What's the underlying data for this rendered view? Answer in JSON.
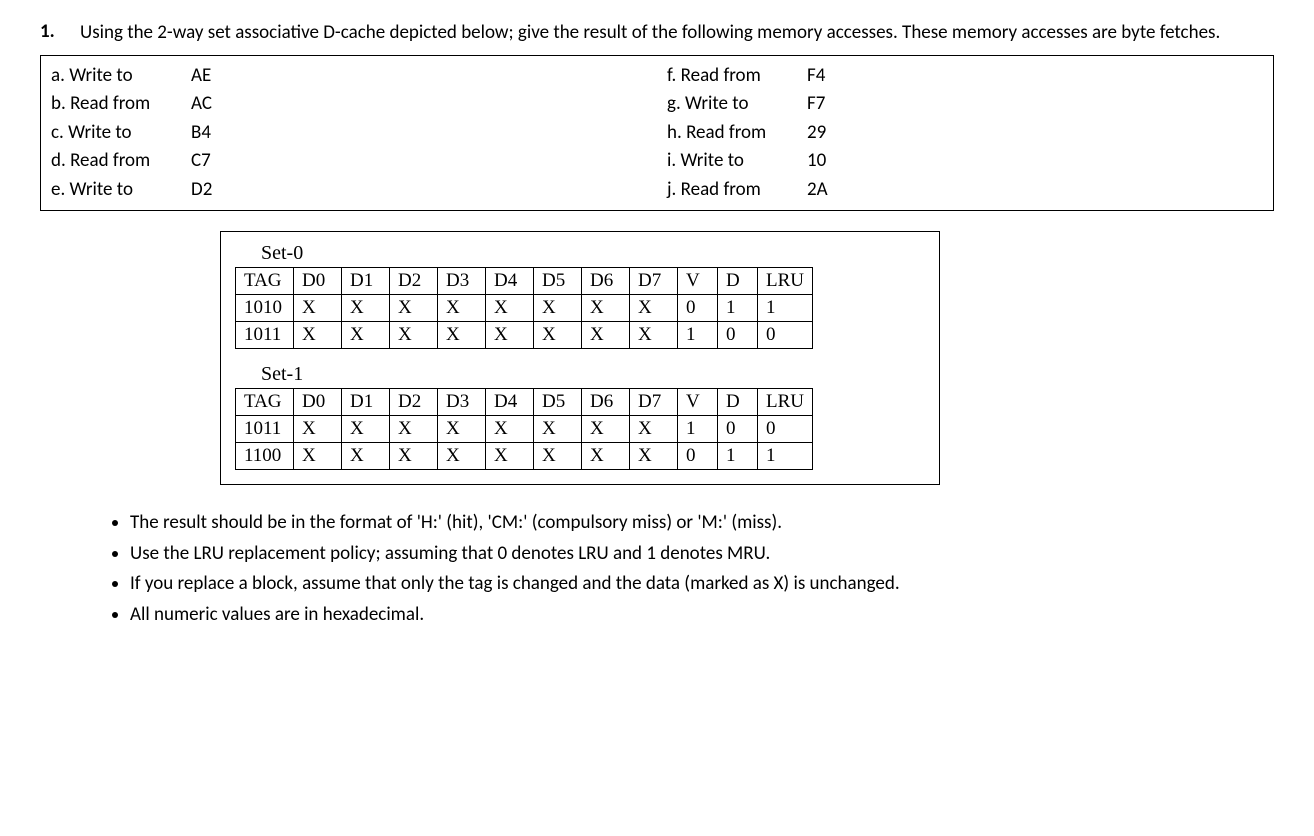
{
  "question": {
    "number": "1.",
    "text": "Using the 2-way set associative D-cache depicted below; give the result of the following memory accesses. These memory accesses are byte fetches."
  },
  "accesses_left": [
    {
      "label": "a. Write to",
      "addr": "AE"
    },
    {
      "label": "b. Read from",
      "addr": "AC"
    },
    {
      "label": "c. Write to",
      "addr": "B4"
    },
    {
      "label": "d. Read from",
      "addr": "C7"
    },
    {
      "label": "e. Write to",
      "addr": "D2"
    }
  ],
  "accesses_right": [
    {
      "label": "f. Read from",
      "addr": "F4"
    },
    {
      "label": "g. Write to",
      "addr": "F7"
    },
    {
      "label": "h. Read from",
      "addr": "29"
    },
    {
      "label": "i. Write to",
      "addr": "10"
    },
    {
      "label": "j. Read from",
      "addr": "2A"
    }
  ],
  "cache_headers": [
    "TAG",
    "D0",
    "D1",
    "D2",
    "D3",
    "D4",
    "D5",
    "D6",
    "D7",
    "V",
    "D",
    "LRU"
  ],
  "set0": {
    "label": "Set-0",
    "rows": [
      [
        "1010",
        "X",
        "X",
        "X",
        "X",
        "X",
        "X",
        "X",
        "X",
        "0",
        "1",
        "1"
      ],
      [
        "1011",
        "X",
        "X",
        "X",
        "X",
        "X",
        "X",
        "X",
        "X",
        "1",
        "0",
        "0"
      ]
    ]
  },
  "set1": {
    "label": "Set-1",
    "rows": [
      [
        "1011",
        "X",
        "X",
        "X",
        "X",
        "X",
        "X",
        "X",
        "X",
        "1",
        "0",
        "0"
      ],
      [
        "1100",
        "X",
        "X",
        "X",
        "X",
        "X",
        "X",
        "X",
        "X",
        "0",
        "1",
        "1"
      ]
    ]
  },
  "bullets": [
    "The result should be in the format of 'H:' (hit), 'CM:' (compulsory miss) or 'M:' (miss).",
    "Use the LRU replacement policy; assuming that 0 denotes LRU and 1 denotes MRU.",
    "If you replace a block, assume that only the tag is changed and the data (marked as X) is unchanged.",
    "All numeric values are in hexadecimal."
  ],
  "styling": {
    "body_font": "Calibri",
    "serif_font": "Times New Roman",
    "font_size": 19,
    "text_color": "#000000",
    "background_color": "#ffffff",
    "border_color": "#000000",
    "cache_box_width": 720,
    "cache_box_margin_left": 180
  }
}
